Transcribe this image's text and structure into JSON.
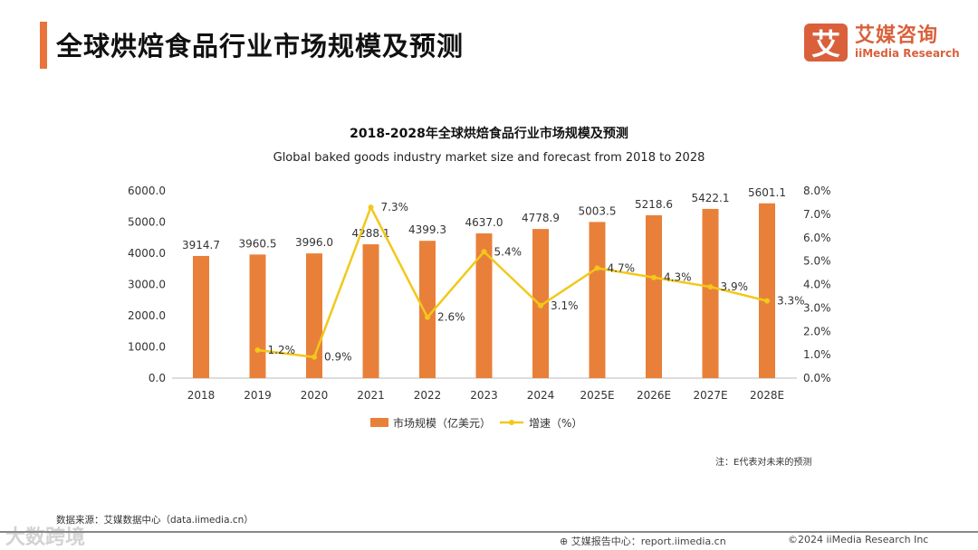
{
  "header": {
    "title": "全球烘焙食品行业市场规模及预测",
    "logo_mark": "艾",
    "logo_cn": "艾媒咨询",
    "logo_en": "iiMedia Research"
  },
  "note": "注：E代表对未来的预测",
  "source": "数据来源：艾媒数据中心（data.iimedia.cn）",
  "footer": {
    "report": "艾媒报告中心：report.iimedia.cn",
    "copyright": "©2024  iiMedia Research  Inc",
    "watermark": "大数跨境"
  },
  "colors": {
    "bar": "#e8803a",
    "line": "#f2c81b",
    "accent": "#e8743b"
  },
  "chart_data": {
    "type": "bar+line",
    "title": "2018-2028年全球烘焙食品行业市场规模及预测",
    "subtitle": "Global baked goods industry market size and forecast from 2018 to 2028",
    "categories": [
      "2018",
      "2019",
      "2020",
      "2021",
      "2022",
      "2023",
      "2024",
      "2025E",
      "2026E",
      "2027E",
      "2028E"
    ],
    "series": [
      {
        "name": "市场规模（亿美元）",
        "type": "bar",
        "axis": "left",
        "values": [
          3914.7,
          3960.5,
          3996.0,
          4288.1,
          4399.3,
          4637.0,
          4778.9,
          5003.5,
          5218.6,
          5422.1,
          5601.1
        ],
        "labels": [
          "3914.7",
          "3960.5",
          "3996.0",
          "4288.1",
          "4399.3",
          "4637.0",
          "4778.9",
          "5003.5",
          "5218.6",
          "5422.1",
          "5601.1"
        ]
      },
      {
        "name": "增速（%）",
        "type": "line",
        "axis": "right",
        "values": [
          null,
          1.2,
          0.9,
          7.3,
          2.6,
          5.4,
          3.1,
          4.7,
          4.3,
          3.9,
          3.3
        ],
        "labels": [
          "",
          "1.2%",
          "0.9%",
          "7.3%",
          "2.6%",
          "5.4%",
          "3.1%",
          "4.7%",
          "4.3%",
          "3.9%",
          "3.3%"
        ]
      }
    ],
    "ylim_left": [
      0,
      6000
    ],
    "yticks_left": [
      "0.0",
      "1000.0",
      "2000.0",
      "3000.0",
      "4000.0",
      "5000.0",
      "6000.0"
    ],
    "ylim_right": [
      0,
      8
    ],
    "yticks_right": [
      "0.0%",
      "1.0%",
      "2.0%",
      "3.0%",
      "4.0%",
      "5.0%",
      "6.0%",
      "7.0%",
      "8.0%"
    ],
    "legend": "bottom",
    "grid": false
  }
}
